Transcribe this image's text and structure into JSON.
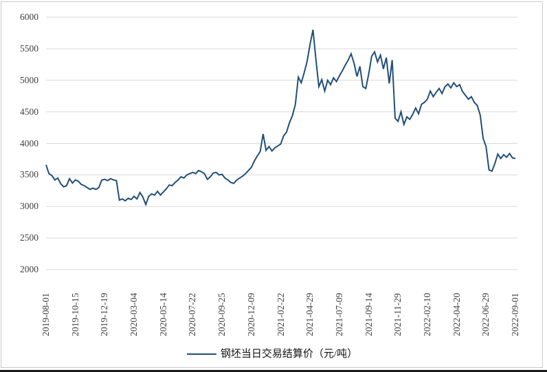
{
  "chart_data": {
    "type": "line",
    "title": "",
    "legend_label": "钢坯当日交易结算价（元/吨）",
    "legend_position": "bottom",
    "grid": "horizontal",
    "ylim": [
      2000,
      6000
    ],
    "y_ticks": [
      2000,
      2500,
      3000,
      3500,
      4000,
      4500,
      5000,
      5500,
      6000
    ],
    "x_tick_labels": [
      "2019-08-01",
      "2019-10-15",
      "2019-12-19",
      "2020-03-04",
      "2020-05-14",
      "2020-07-22",
      "2020-09-25",
      "2020-12-09",
      "2021-02-22",
      "2021-04-29",
      "2021-07-09",
      "2021-09-14",
      "2021-11-29",
      "2022-02-10",
      "2022-04-20",
      "2022-06-29",
      "2022-09-01"
    ],
    "points_per_tick_interval": 10,
    "series": [
      {
        "name": "钢坯当日交易结算价（元/吨）",
        "values": [
          3660,
          3520,
          3490,
          3420,
          3450,
          3360,
          3310,
          3330,
          3440,
          3370,
          3420,
          3400,
          3350,
          3330,
          3300,
          3270,
          3290,
          3270,
          3300,
          3420,
          3430,
          3410,
          3440,
          3420,
          3410,
          3100,
          3120,
          3090,
          3130,
          3110,
          3160,
          3120,
          3220,
          3150,
          3030,
          3160,
          3200,
          3180,
          3240,
          3180,
          3230,
          3280,
          3340,
          3330,
          3380,
          3420,
          3470,
          3450,
          3500,
          3520,
          3540,
          3520,
          3570,
          3550,
          3520,
          3430,
          3470,
          3530,
          3540,
          3500,
          3510,
          3450,
          3420,
          3380,
          3365,
          3420,
          3450,
          3480,
          3520,
          3570,
          3620,
          3720,
          3800,
          3870,
          4150,
          3890,
          3950,
          3880,
          3930,
          3960,
          3990,
          4120,
          4180,
          4330,
          4440,
          4620,
          5050,
          4960,
          5120,
          5300,
          5570,
          5800,
          5330,
          4900,
          5010,
          4830,
          5000,
          4930,
          5040,
          4980,
          5070,
          5150,
          5240,
          5320,
          5420,
          5270,
          5060,
          5220,
          4900,
          4870,
          5100,
          5380,
          5450,
          5290,
          5400,
          5180,
          5360,
          4950,
          5320,
          4400,
          4350,
          4500,
          4300,
          4420,
          4380,
          4460,
          4560,
          4470,
          4620,
          4650,
          4700,
          4830,
          4740,
          4810,
          4870,
          4790,
          4900,
          4940,
          4880,
          4960,
          4900,
          4930,
          4820,
          4760,
          4700,
          4740,
          4650,
          4600,
          4450,
          4080,
          3950,
          3580,
          3560,
          3680,
          3830,
          3760,
          3820,
          3780,
          3840,
          3770,
          3760
        ]
      }
    ]
  },
  "colors": {
    "line": "#1f4e79",
    "grid": "#d9d9d9",
    "axis_text": "#404040",
    "frame_border": "#c9c9c9",
    "bottom_bar": "#1a1a1a",
    "background": "#ffffff"
  }
}
